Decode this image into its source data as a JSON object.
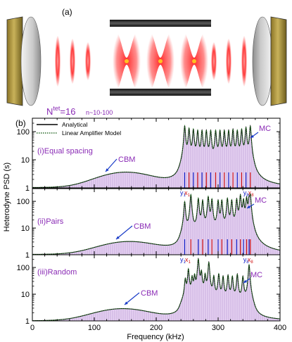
{
  "panel_a": {
    "label": "(a)"
  },
  "panel_b": {
    "label": "(b)",
    "ntet_base": "N",
    "ntet_sup": "tet",
    "ntet_value": "=16",
    "n_range": "n~10-100",
    "legend": {
      "analytical": "Analytical",
      "linear_amplifier": "Linear Amplifier Model"
    }
  },
  "chart_data": [
    {
      "type": "line",
      "title": "(i)Equal spacing",
      "xlabel": "Frequency (kHz)",
      "ylabel": "Heterodyne PSD (s)",
      "xlim": [
        0,
        400
      ],
      "ylim": [
        1,
        300
      ],
      "yscale": "log",
      "xticks": [
        0,
        100,
        200,
        300,
        400
      ],
      "yticks": [
        1,
        10,
        100
      ],
      "cbm": {
        "label": "CBM",
        "center": 150,
        "peak": 3.5,
        "width": 55
      },
      "mc": {
        "label": "MC",
        "peaks": [
          246,
          253,
          260,
          267,
          274,
          281,
          288,
          296,
          303,
          310,
          317,
          324,
          331,
          338,
          345,
          352
        ],
        "heights": [
          150,
          120,
          110,
          100,
          100,
          100,
          100,
          100,
          100,
          100,
          100,
          110,
          100,
          110,
          130,
          150
        ]
      },
      "markers": [
        {
          "label": "y",
          "sub": "1",
          "x": 242
        },
        {
          "label": "x",
          "sub": "1",
          "x": 249
        },
        {
          "label": "y",
          "sub": "8",
          "x": 344
        },
        {
          "label": "x",
          "sub": "8",
          "x": 352
        }
      ],
      "grid": false
    },
    {
      "type": "line",
      "title": "(ii)Pairs",
      "xlabel": "Frequency (kHz)",
      "ylabel": "Heterodyne PSD (s)",
      "xlim": [
        0,
        400
      ],
      "ylim": [
        1,
        300
      ],
      "yscale": "log",
      "xticks": [
        0,
        100,
        200,
        300,
        400
      ],
      "yticks": [
        1,
        10,
        100
      ],
      "cbm": {
        "label": "CBM",
        "center": 155,
        "peak": 3.0,
        "width": 58
      },
      "mc": {
        "label": "MC",
        "peaks": [
          246,
          256,
          268,
          275,
          284,
          290,
          300,
          306,
          315,
          322,
          330,
          336,
          341,
          346,
          350,
          352
        ],
        "heights": [
          90,
          170,
          120,
          100,
          140,
          110,
          100,
          100,
          120,
          100,
          110,
          160,
          100,
          120,
          100,
          150
        ]
      },
      "markers": [
        {
          "label": "y",
          "sub": "1",
          "x": 242
        },
        {
          "label": "x",
          "sub": "1",
          "x": 250
        },
        {
          "label": "y",
          "sub": "8",
          "x": 344
        },
        {
          "label": "x",
          "sub": "8",
          "x": 351
        }
      ],
      "grid": false
    },
    {
      "type": "line",
      "title": "(iii)Random",
      "xlabel": "Frequency (kHz)",
      "ylabel": "Heterodyne PSD (s)",
      "xlim": [
        0,
        400
      ],
      "ylim": [
        1,
        300
      ],
      "yscale": "log",
      "xticks": [
        0,
        100,
        200,
        300,
        400
      ],
      "yticks": [
        1,
        10,
        100
      ],
      "cbm": {
        "label": "CBM",
        "center": 145,
        "peak": 2.8,
        "width": 57
      },
      "mc": {
        "label": "MC",
        "peaks": [
          247,
          252,
          258,
          262,
          268,
          273,
          279,
          285,
          293,
          301,
          308,
          316,
          323,
          331,
          340,
          350
        ],
        "heights": [
          30,
          80,
          35,
          40,
          200,
          60,
          45,
          150,
          40,
          50,
          40,
          45,
          40,
          50,
          40,
          120
        ]
      },
      "markers": [],
      "grid": false
    }
  ]
}
